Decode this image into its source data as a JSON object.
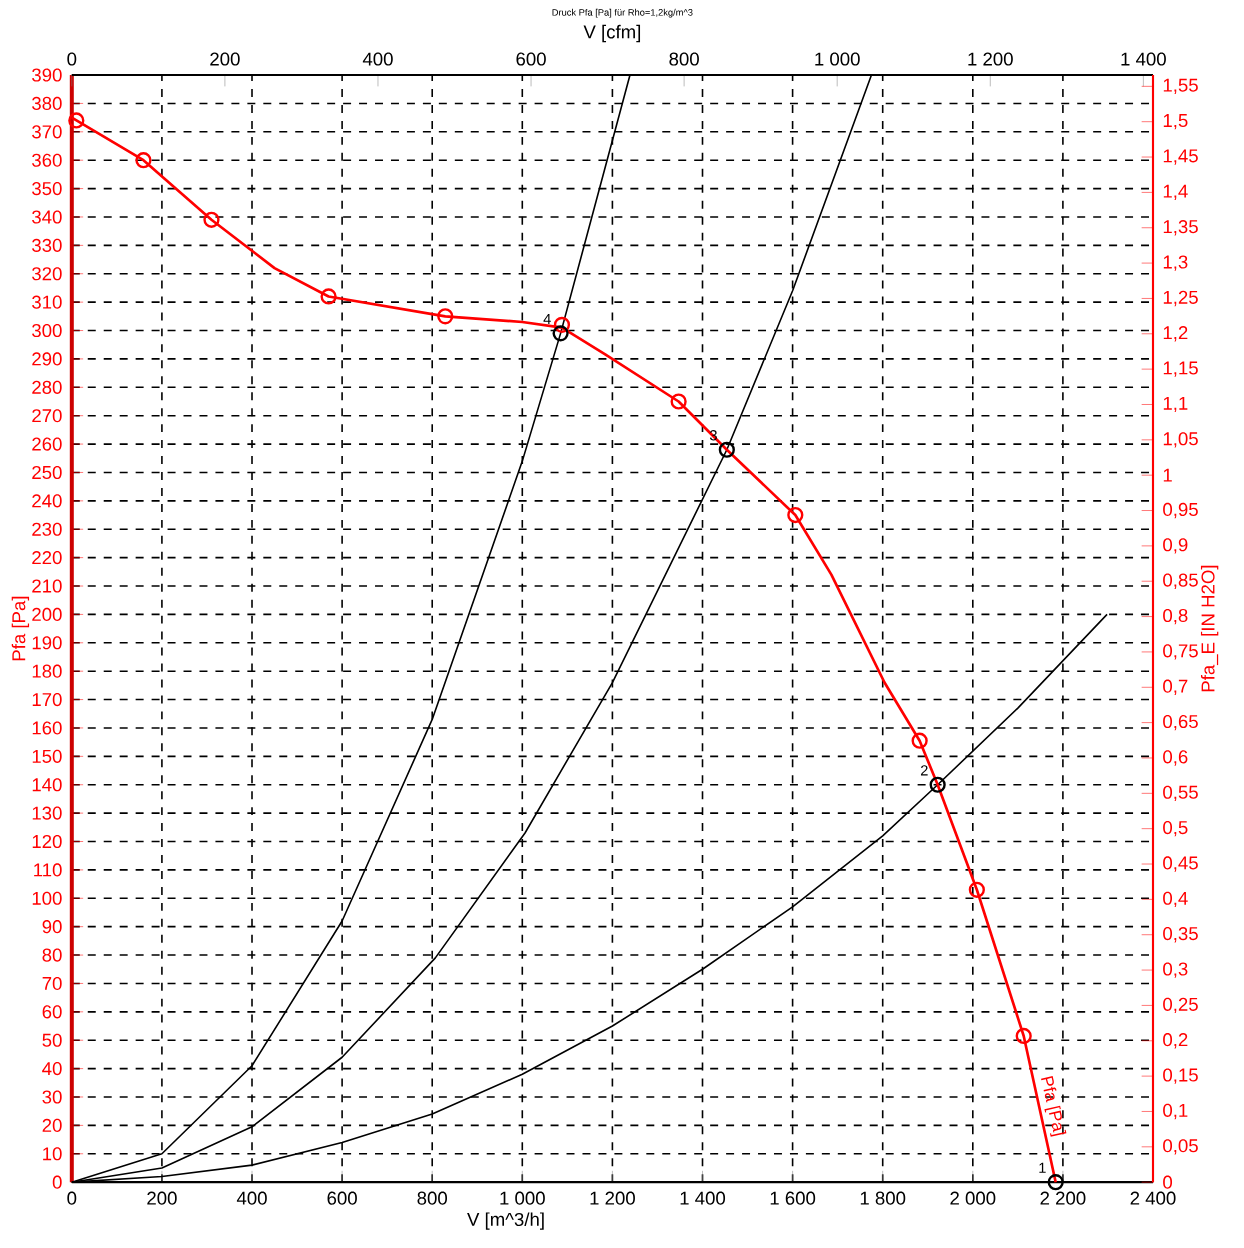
{
  "chart_data": {
    "type": "line",
    "title": "Druck Pfa [Pa] für Rho=1,2kg/m^3",
    "xlabel": "V [m^3/h]",
    "x2label": "V [cfm]",
    "ylabel": "Pfa [Pa]",
    "y2label": "Pfa_E [IN H2O]",
    "xlim": [
      0,
      2400
    ],
    "ylim": [
      0,
      390
    ],
    "x2lim": [
      0,
      1412.6
    ],
    "y2lim": [
      0,
      1.566
    ],
    "xticks": [
      0,
      200,
      400,
      600,
      800,
      {
        "value": 1000,
        "label": "1 000"
      },
      {
        "value": 1200,
        "label": "1 200"
      },
      {
        "value": 1400,
        "label": "1 400"
      },
      {
        "value": 1600,
        "label": "1 600"
      },
      {
        "value": 1800,
        "label": "1 800"
      },
      {
        "value": 2000,
        "label": "2 000"
      },
      {
        "value": 2200,
        "label": "2 200"
      },
      {
        "value": 2400,
        "label": "2 400"
      }
    ],
    "x2ticks": [
      0,
      200,
      400,
      600,
      800,
      {
        "value": 1000,
        "label": "1 000"
      },
      {
        "value": 1200,
        "label": "1 200"
      },
      {
        "value": 1400,
        "label": "1 400"
      }
    ],
    "yticks": [
      0,
      10,
      20,
      30,
      40,
      50,
      60,
      70,
      80,
      90,
      100,
      110,
      120,
      130,
      140,
      150,
      160,
      170,
      180,
      190,
      200,
      210,
      220,
      230,
      240,
      250,
      260,
      270,
      280,
      290,
      300,
      310,
      320,
      330,
      340,
      350,
      360,
      370,
      380,
      390
    ],
    "y2ticks": [
      0,
      {
        "value": 0.05,
        "label": "0,05"
      },
      {
        "value": 0.1,
        "label": "0,1"
      },
      {
        "value": 0.15,
        "label": "0,15"
      },
      {
        "value": 0.2,
        "label": "0,2"
      },
      {
        "value": 0.25,
        "label": "0,25"
      },
      {
        "value": 0.3,
        "label": "0,3"
      },
      {
        "value": 0.35,
        "label": "0,35"
      },
      {
        "value": 0.4,
        "label": "0,4"
      },
      {
        "value": 0.45,
        "label": "0,45"
      },
      {
        "value": 0.5,
        "label": "0,5"
      },
      {
        "value": 0.55,
        "label": "0,55"
      },
      {
        "value": 0.6,
        "label": "0,6"
      },
      {
        "value": 0.65,
        "label": "0,65"
      },
      {
        "value": 0.7,
        "label": "0,7"
      },
      {
        "value": 0.75,
        "label": "0,75"
      },
      {
        "value": 0.8,
        "label": "0,8"
      },
      {
        "value": 0.85,
        "label": "0,85"
      },
      {
        "value": 0.9,
        "label": "0,9"
      },
      {
        "value": 0.95,
        "label": "0,95"
      },
      1,
      {
        "value": 1.05,
        "label": "1,05"
      },
      {
        "value": 1.1,
        "label": "1,1"
      },
      {
        "value": 1.15,
        "label": "1,15"
      },
      {
        "value": 1.2,
        "label": "1,2"
      },
      {
        "value": 1.25,
        "label": "1,25"
      },
      {
        "value": 1.3,
        "label": "1,3"
      },
      {
        "value": 1.35,
        "label": "1,35"
      },
      {
        "value": 1.4,
        "label": "1,4"
      },
      {
        "value": 1.45,
        "label": "1,45"
      },
      {
        "value": 1.5,
        "label": "1,5"
      },
      {
        "value": 1.55,
        "label": "1,55"
      }
    ],
    "grid": true,
    "series": [
      {
        "color": "#000000",
        "x": [
          0,
          200,
          400,
          600,
          800,
          1000,
          1085,
          1239
        ],
        "values": [
          0,
          10,
          41,
          92,
          163,
          254,
          299,
          390
        ]
      },
      {
        "color": "#000000",
        "x": [
          0,
          200,
          400,
          600,
          807,
          1006,
          1200,
          1454,
          1600,
          1775
        ],
        "values": [
          0,
          5,
          19.5,
          44,
          79,
          123,
          176,
          258,
          314,
          390
        ]
      },
      {
        "color": "#000000",
        "x": [
          0,
          200,
          400,
          600,
          800,
          1000,
          1200,
          1400,
          1600,
          1800,
          1922,
          2100,
          2298
        ],
        "values": [
          0,
          2,
          6,
          14,
          24,
          38,
          55,
          75,
          97,
          122,
          140,
          167,
          200
        ]
      },
      {
        "name": "Pfa [Pa]",
        "color": "#ff0000",
        "x": [
          0,
          159,
          310,
          450,
          570,
          829,
          1000,
          1088,
          1184,
          1347,
          1454,
          1606,
          1686,
          1804,
          1882,
          1922,
          2009,
          2113,
          2184
        ],
        "values": [
          375,
          360,
          339,
          322,
          312,
          305,
          303,
          301,
          291.6,
          275,
          258,
          235,
          214,
          176,
          155.5,
          140,
          103,
          51.5,
          0
        ]
      },
      {
        "type": "scatter",
        "marker": "circle",
        "color": "#ff0000",
        "x": [
          10,
          159,
          310,
          570,
          829,
          1088,
          1347,
          1606,
          1882,
          2009,
          2113
        ],
        "values": [
          374,
          360,
          339,
          312,
          305,
          302,
          275,
          235,
          155.5,
          103,
          51.5
        ]
      },
      {
        "type": "scatter",
        "marker": "circle",
        "color": "#000000",
        "x": [
          1085,
          1454,
          1922,
          2184
        ],
        "values": [
          299,
          258,
          140,
          0
        ]
      }
    ],
    "annotations": [
      {
        "text": "4",
        "x": 1085,
        "y": 299
      },
      {
        "text": "3",
        "x": 1454,
        "y": 258
      },
      {
        "text": "2",
        "x": 1922,
        "y": 140
      },
      {
        "text": "1",
        "x": 2184,
        "y": 0
      }
    ]
  }
}
